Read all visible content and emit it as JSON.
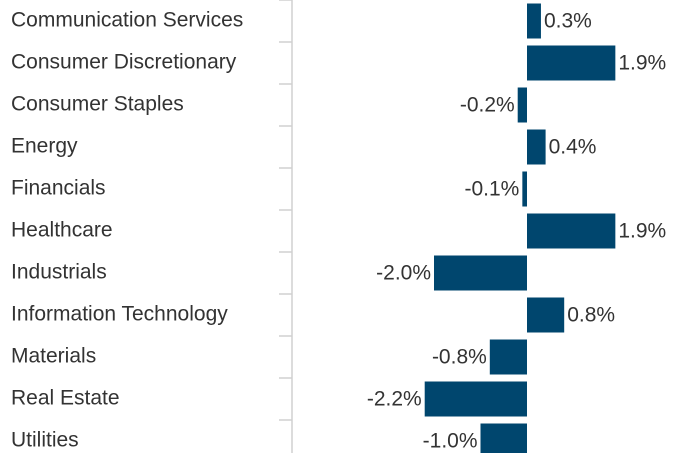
{
  "chart_data": {
    "type": "bar",
    "orientation": "horizontal",
    "categories": [
      "Communication Services",
      "Consumer Discretionary",
      "Consumer Staples",
      "Energy",
      "Financials",
      "Healthcare",
      "Industrials",
      "Information Technology",
      "Materials",
      "Real Estate",
      "Utilities"
    ],
    "values": [
      0.3,
      1.9,
      -0.2,
      0.4,
      -0.1,
      1.9,
      -2.0,
      0.8,
      -0.8,
      -2.2,
      -1.0
    ],
    "value_labels": [
      "0.3%",
      "1.9%",
      "-0.2%",
      "0.4%",
      "-0.1%",
      "1.9%",
      "-2.0%",
      "0.8%",
      "-0.8%",
      "-2.2%",
      "-1.0%"
    ],
    "color": "#00466e"
  }
}
